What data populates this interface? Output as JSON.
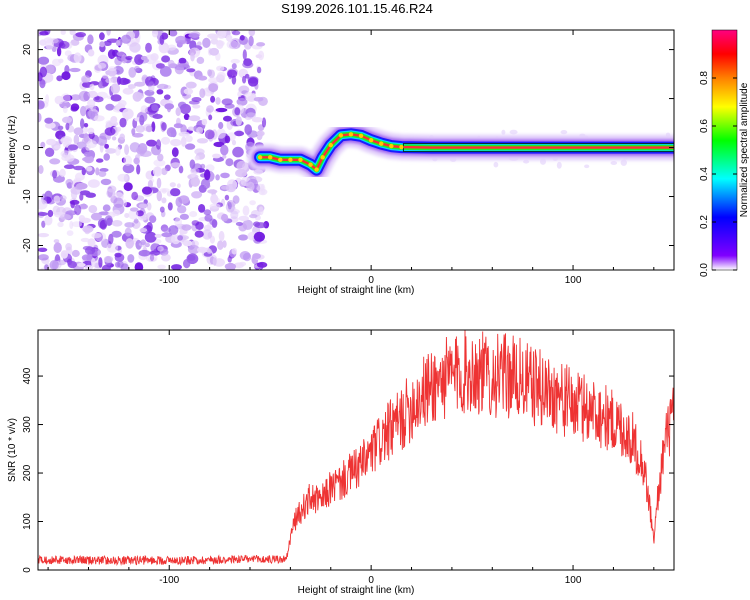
{
  "title": "S199.2026.101.15.46.R24",
  "chart_data": [
    {
      "type": "heatmap",
      "title": "S199.2026.101.15.46.R24",
      "xlabel": "Height of straight line (km)",
      "ylabel": "Frequency (Hz)",
      "xlim": [
        -165,
        150
      ],
      "ylim": [
        -25,
        24
      ],
      "xticks": [
        -100,
        0,
        100
      ],
      "yticks": [
        -20,
        -10,
        0,
        10,
        20
      ],
      "noise_region_x": [
        -165,
        -53
      ],
      "ridge": {
        "x": [
          -55,
          -50,
          -45,
          -40,
          -35,
          -30,
          -27,
          -24,
          -20,
          -15,
          -10,
          -5,
          0,
          5,
          10,
          15,
          30,
          60,
          100,
          140,
          150
        ],
        "freq": [
          -2,
          -2,
          -2.5,
          -2.5,
          -2.5,
          -3.5,
          -4.5,
          -2,
          0.5,
          2.5,
          2.7,
          2.4,
          1.5,
          0.8,
          0.3,
          0.1,
          0,
          0,
          0,
          0,
          0
        ]
      },
      "colorbar": {
        "label": "Normalized spectral amplitude",
        "range": [
          0,
          1
        ],
        "ticks": [
          0.0,
          0.2,
          0.4,
          0.6,
          0.8
        ],
        "tick_labels": [
          "0.0",
          "0.2",
          "0.4",
          "0.6",
          "0.8"
        ],
        "colormap": [
          "#ffffff",
          "#8000ff",
          "#0000ff",
          "#00ffff",
          "#00ff00",
          "#ffff00",
          "#ff8000",
          "#ff0000",
          "#ff0080"
        ]
      }
    },
    {
      "type": "line",
      "xlabel": "Height of straight line (km)",
      "ylabel": "SNR (10 * v/v)",
      "xlim": [
        -165,
        150
      ],
      "ylim": [
        0,
        495
      ],
      "xticks": [
        -100,
        0,
        100
      ],
      "yticks": [
        0,
        100,
        200,
        300,
        400
      ],
      "series": [
        {
          "name": "SNR",
          "color": "#ee3333",
          "x": [
            -165,
            -150,
            -130,
            -110,
            -90,
            -70,
            -50,
            -42,
            -40,
            -38,
            -35,
            -30,
            -25,
            -20,
            -15,
            -10,
            -5,
            0,
            5,
            10,
            15,
            20,
            25,
            30,
            40,
            50,
            60,
            70,
            80,
            90,
            100,
            110,
            120,
            125,
            130,
            135,
            138,
            140,
            142,
            145,
            148,
            150
          ],
          "y": [
            22,
            20,
            20,
            20,
            20,
            22,
            22,
            22,
            65,
            100,
            120,
            150,
            140,
            170,
            180,
            200,
            215,
            240,
            270,
            290,
            310,
            340,
            360,
            380,
            400,
            410,
            400,
            400,
            380,
            365,
            340,
            330,
            305,
            290,
            265,
            215,
            130,
            60,
            150,
            250,
            300,
            330
          ]
        }
      ]
    }
  ]
}
